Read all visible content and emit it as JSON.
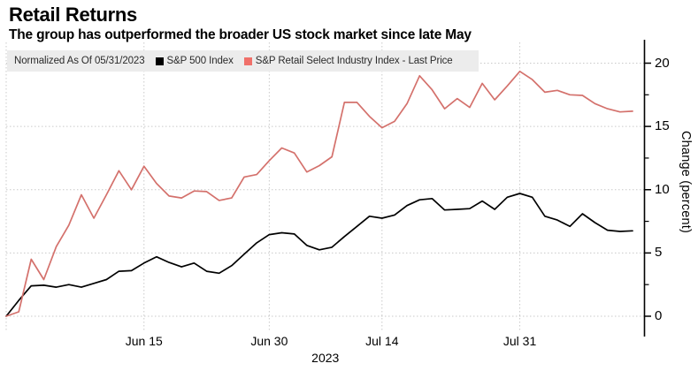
{
  "header": {
    "title": "Retail Returns",
    "subtitle": "The group has outperformed the broader US stock market since late May"
  },
  "legend": {
    "note": "Normalized As Of 05/31/2023",
    "items": [
      {
        "label": "S&P 500 Index",
        "color": "#000000"
      },
      {
        "label": "S&P Retail Select Industry Index - Last Price",
        "color": "#f0706a"
      }
    ],
    "background": "#ececec"
  },
  "axis": {
    "y_label": "Change (percent)",
    "year_label": "2023"
  },
  "chart_data": {
    "type": "line",
    "title": "Retail Returns",
    "subtitle": "The group has outperformed the broader US stock market since late May",
    "ylabel": "Change (percent)",
    "ylim": [
      0,
      20
    ],
    "grid": true,
    "legend_position": "top",
    "y_ticks": [
      0,
      5,
      10,
      15,
      20
    ],
    "y_minor_ticks": [
      2.5,
      7.5,
      12.5,
      17.5
    ],
    "x_ticks": [
      {
        "label": "Jun 15",
        "index": 11
      },
      {
        "label": "Jun 30",
        "index": 21
      },
      {
        "label": "Jul 14",
        "index": 30
      },
      {
        "label": "Jul 31",
        "index": 41
      }
    ],
    "start_gridline_index": 0,
    "x": [
      "May 31",
      "Jun 1",
      "Jun 2",
      "Jun 5",
      "Jun 6",
      "Jun 7",
      "Jun 8",
      "Jun 9",
      "Jun 12",
      "Jun 13",
      "Jun 14",
      "Jun 15",
      "Jun 16",
      "Jun 20",
      "Jun 21",
      "Jun 22",
      "Jun 23",
      "Jun 26",
      "Jun 27",
      "Jun 28",
      "Jun 29",
      "Jun 30",
      "Jul 3",
      "Jul 5",
      "Jul 6",
      "Jul 7",
      "Jul 10",
      "Jul 11",
      "Jul 12",
      "Jul 13",
      "Jul 14",
      "Jul 17",
      "Jul 18",
      "Jul 19",
      "Jul 20",
      "Jul 21",
      "Jul 24",
      "Jul 25",
      "Jul 26",
      "Jul 27",
      "Jul 28",
      "Jul 31",
      "Aug 1",
      "Aug 2",
      "Aug 3",
      "Aug 4",
      "Aug 7",
      "Aug 8",
      "Aug 9",
      "Aug 10",
      "Aug 11"
    ],
    "series": [
      {
        "name": "S&P 500 Index",
        "color": "#000000",
        "values": [
          0,
          1.25,
          2.4,
          2.45,
          2.3,
          2.5,
          2.3,
          2.6,
          2.9,
          3.55,
          3.6,
          4.2,
          4.7,
          4.25,
          3.9,
          4.2,
          3.55,
          3.4,
          4.0,
          4.9,
          5.8,
          6.45,
          6.6,
          6.5,
          5.6,
          5.25,
          5.45,
          6.3,
          7.1,
          7.9,
          7.75,
          8.0,
          8.75,
          9.2,
          9.3,
          8.4,
          8.45,
          8.5,
          9.1,
          8.45,
          9.4,
          9.7,
          9.4,
          7.9,
          7.6,
          7.1,
          8.1,
          7.4,
          6.8,
          6.7,
          6.75
        ]
      },
      {
        "name": "S&P Retail Select Industry Index - Last Price",
        "color": "#d4716c",
        "values": [
          0,
          0.35,
          4.5,
          2.9,
          5.5,
          7.2,
          9.6,
          7.75,
          9.6,
          11.5,
          10.0,
          11.85,
          10.5,
          9.5,
          9.35,
          9.9,
          9.85,
          9.15,
          9.35,
          11.0,
          11.2,
          12.3,
          13.3,
          12.9,
          11.4,
          11.9,
          12.6,
          16.9,
          16.9,
          15.8,
          14.9,
          15.4,
          16.8,
          19.0,
          17.9,
          16.4,
          17.2,
          16.5,
          18.4,
          17.1,
          18.2,
          19.35,
          18.7,
          17.7,
          17.85,
          17.5,
          17.45,
          16.8,
          16.4,
          16.15,
          16.2
        ]
      }
    ],
    "gridline_color": "#c9c9c9",
    "axis_color": "#000000"
  }
}
